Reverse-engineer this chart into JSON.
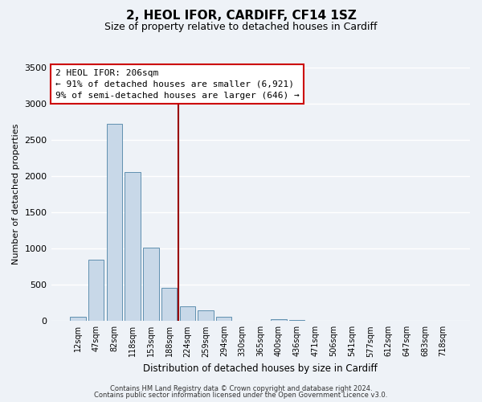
{
  "title": "2, HEOL IFOR, CARDIFF, CF14 1SZ",
  "subtitle": "Size of property relative to detached houses in Cardiff",
  "xlabel": "Distribution of detached houses by size in Cardiff",
  "ylabel": "Number of detached properties",
  "bar_labels": [
    "12sqm",
    "47sqm",
    "82sqm",
    "118sqm",
    "153sqm",
    "188sqm",
    "224sqm",
    "259sqm",
    "294sqm",
    "330sqm",
    "365sqm",
    "400sqm",
    "436sqm",
    "471sqm",
    "506sqm",
    "541sqm",
    "577sqm",
    "612sqm",
    "647sqm",
    "683sqm",
    "718sqm"
  ],
  "bar_values": [
    55,
    850,
    2720,
    2060,
    1010,
    460,
    200,
    150,
    55,
    0,
    0,
    30,
    20,
    0,
    0,
    0,
    0,
    0,
    0,
    0,
    0
  ],
  "bar_color": "#c8d8e8",
  "bar_edgecolor": "#6090b0",
  "ylim": [
    0,
    3500
  ],
  "yticks": [
    0,
    500,
    1000,
    1500,
    2000,
    2500,
    3000,
    3500
  ],
  "vline_x": 5.5,
  "vline_color": "#990000",
  "annotation_title": "2 HEOL IFOR: 206sqm",
  "annotation_line1": "← 91% of detached houses are smaller (6,921)",
  "annotation_line2": "9% of semi-detached houses are larger (646) →",
  "footer_line1": "Contains HM Land Registry data © Crown copyright and database right 2024.",
  "footer_line2": "Contains public sector information licensed under the Open Government Licence v3.0.",
  "bg_color": "#eef2f7",
  "plot_bg_color": "#eef2f7",
  "grid_color": "#ffffff"
}
